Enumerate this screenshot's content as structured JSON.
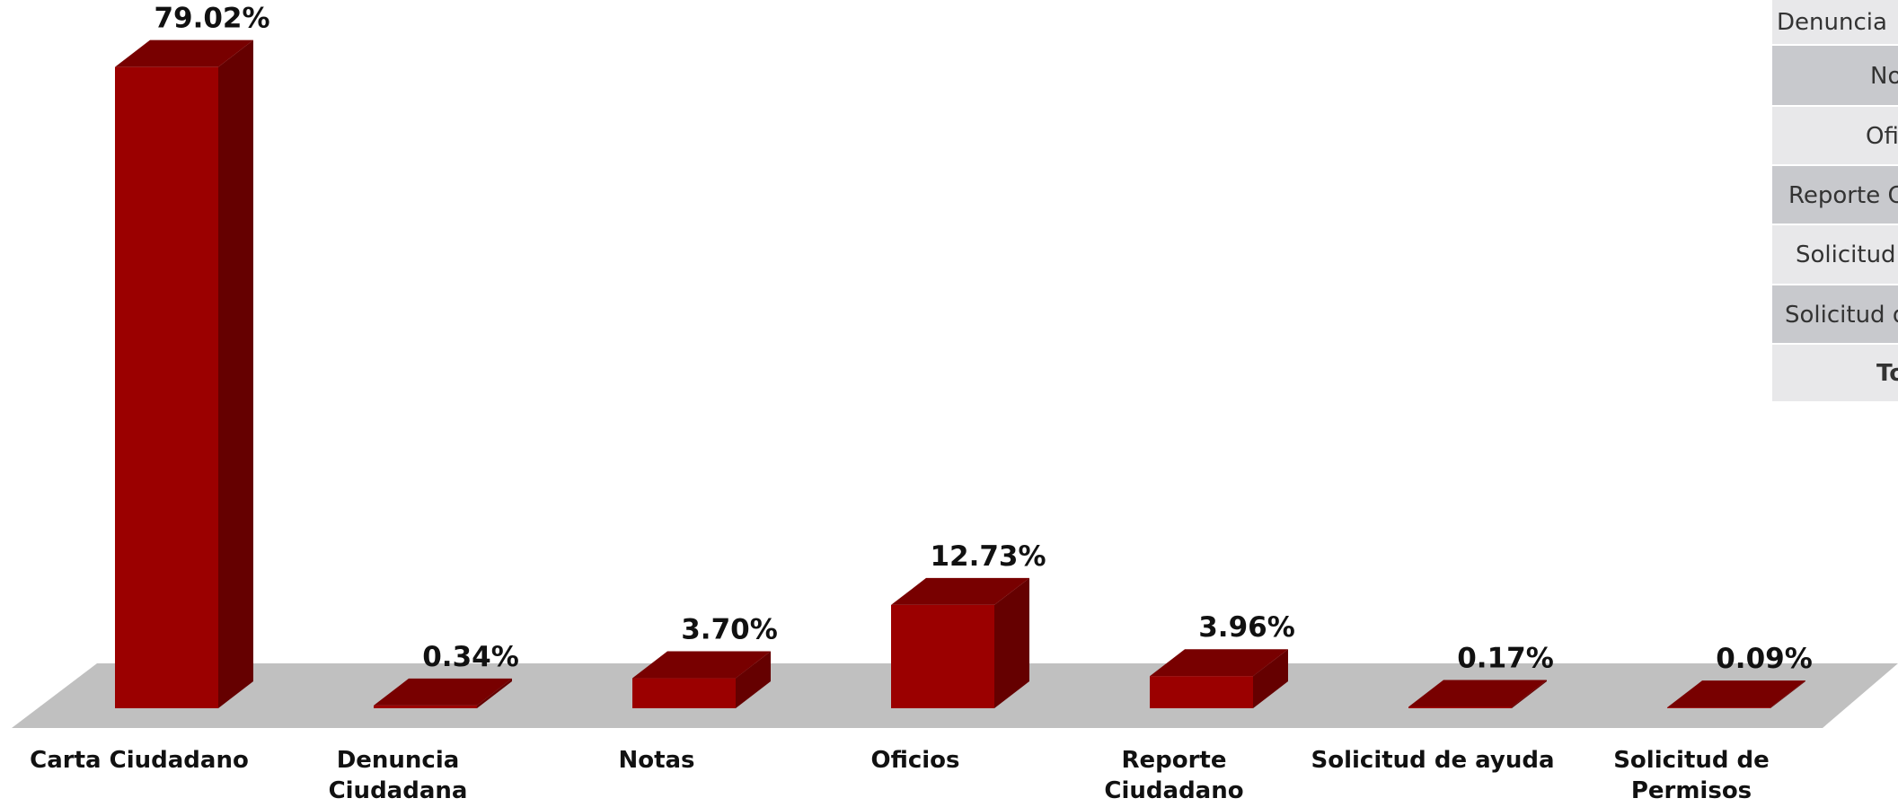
{
  "chart_data": {
    "type": "bar3d",
    "categories": [
      "Carta Ciudadano",
      "Denuncia\nCiudadana",
      "Notas",
      "Oficios",
      "Reporte\nCiudadano",
      "Solicitud de ayuda",
      "Solicitud de\nPermisos"
    ],
    "values": [
      79.02,
      0.34,
      3.7,
      12.73,
      3.96,
      0.17,
      0.09
    ],
    "value_labels": [
      "79.02%",
      "0.34%",
      "3.70%",
      "12.73%",
      "3.96%",
      "0.17%",
      "0.09%"
    ],
    "color": "#9b0000"
  },
  "table": {
    "rows": [
      "Denuncia",
      "No",
      "Ofi",
      "Reporte C",
      "Solicitud",
      "Solicitud d",
      "To"
    ]
  }
}
